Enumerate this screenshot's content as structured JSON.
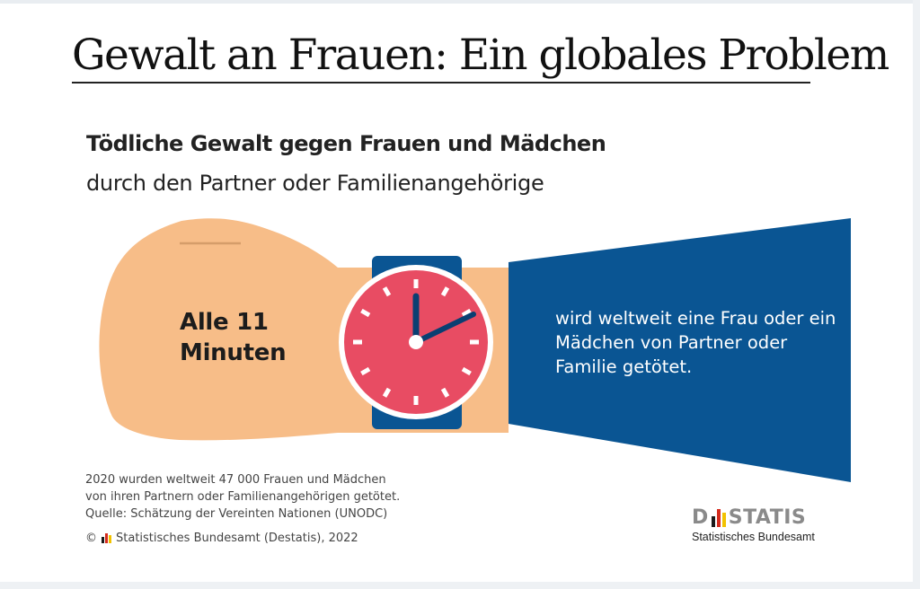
{
  "title": "Gewalt an Frauen: Ein globales Problem",
  "headline": "Tödliche Gewalt gegen Frauen und Mädchen",
  "subheadline": "durch den Partner oder Familienangehörige",
  "hand_text": "Alle 11 Minuten",
  "sleeve_text": "wird weltweit eine Frau oder ein Mädchen von Partner oder Familie getötet.",
  "footnote": {
    "lines": [
      "2020 wurden weltweit 47 000 Frauen und Mädchen",
      "von ihren Partnern oder Familienangehörigen getötet.",
      "Quelle: Schätzung der Vereinten Nationen (UNODC)"
    ],
    "copyright_symbol": "©",
    "copyright_text": "Statistisches Bundesamt (Destatis), 2022"
  },
  "logo": {
    "word_prefix": "D",
    "word_suffix": "STATIS",
    "subtitle": "Statistisches Bundesamt"
  },
  "colors": {
    "skin": "#f7bd88",
    "sleeve": "#0a5593",
    "watch_face": "#e84c63",
    "watch_strap": "#0a5593",
    "flag_black": "#1a1a1a",
    "flag_red": "#d52b1e",
    "flag_gold": "#f2c200"
  },
  "icons": [
    "wristwatch-icon",
    "destatis-flag-bars-icon"
  ]
}
